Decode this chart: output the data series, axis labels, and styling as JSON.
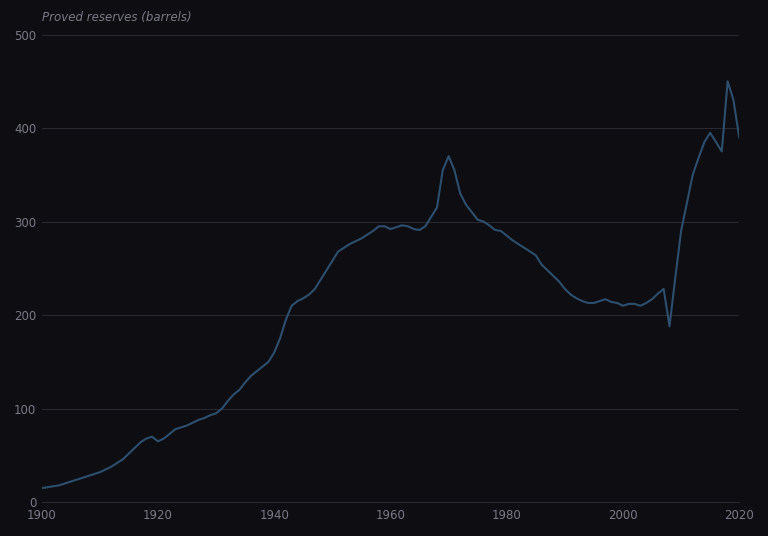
{
  "title": "Proved reserves (barrels)",
  "background_color": "#0d0d12",
  "plot_bg_color": "#0d0d12",
  "line_color": "#2d4f6e",
  "grid_color": "#2a2a35",
  "text_color": "#7a7a88",
  "ylim": [
    0,
    500
  ],
  "yticks": [
    0,
    100,
    200,
    300,
    400,
    500
  ],
  "xlim": [
    1900,
    2020
  ],
  "xticks": [
    1900,
    1920,
    1940,
    1960,
    1980,
    2000,
    2020
  ],
  "data": {
    "years": [
      1900,
      1901,
      1902,
      1903,
      1904,
      1905,
      1906,
      1907,
      1908,
      1909,
      1910,
      1911,
      1912,
      1913,
      1914,
      1915,
      1916,
      1917,
      1918,
      1919,
      1920,
      1921,
      1922,
      1923,
      1924,
      1925,
      1926,
      1927,
      1928,
      1929,
      1930,
      1931,
      1932,
      1933,
      1934,
      1935,
      1936,
      1937,
      1938,
      1939,
      1940,
      1941,
      1942,
      1943,
      1944,
      1945,
      1946,
      1947,
      1948,
      1949,
      1950,
      1951,
      1952,
      1953,
      1954,
      1955,
      1956,
      1957,
      1958,
      1959,
      1960,
      1961,
      1962,
      1963,
      1964,
      1965,
      1966,
      1967,
      1968,
      1969,
      1970,
      1971,
      1972,
      1973,
      1974,
      1975,
      1976,
      1977,
      1978,
      1979,
      1980,
      1981,
      1982,
      1983,
      1984,
      1985,
      1986,
      1987,
      1988,
      1989,
      1990,
      1991,
      1992,
      1993,
      1994,
      1995,
      1996,
      1997,
      1998,
      1999,
      2000,
      2001,
      2002,
      2003,
      2004,
      2005,
      2006,
      2007,
      2008,
      2009,
      2010,
      2011,
      2012,
      2013,
      2014,
      2015,
      2016,
      2017,
      2018,
      2019,
      2020
    ],
    "values": [
      15,
      16,
      17,
      18,
      20,
      22,
      24,
      26,
      28,
      30,
      32,
      35,
      38,
      42,
      46,
      52,
      58,
      64,
      68,
      70,
      65,
      68,
      73,
      78,
      80,
      82,
      85,
      88,
      90,
      93,
      95,
      100,
      108,
      115,
      120,
      128,
      135,
      140,
      145,
      150,
      160,
      175,
      195,
      210,
      215,
      218,
      222,
      228,
      238,
      248,
      258,
      268,
      272,
      276,
      279,
      282,
      286,
      290,
      295,
      295,
      292,
      294,
      296,
      295,
      292,
      291,
      295,
      305,
      315,
      355,
      370,
      355,
      330,
      318,
      310,
      302,
      300,
      296,
      291,
      290,
      285,
      280,
      276,
      272,
      268,
      264,
      254,
      248,
      242,
      236,
      228,
      222,
      218,
      215,
      213,
      213,
      215,
      217,
      214,
      213,
      210,
      212,
      212,
      210,
      213,
      217,
      223,
      228,
      188,
      240,
      290,
      320,
      350,
      368,
      385,
      395,
      385,
      375,
      450,
      430,
      390
    ]
  }
}
